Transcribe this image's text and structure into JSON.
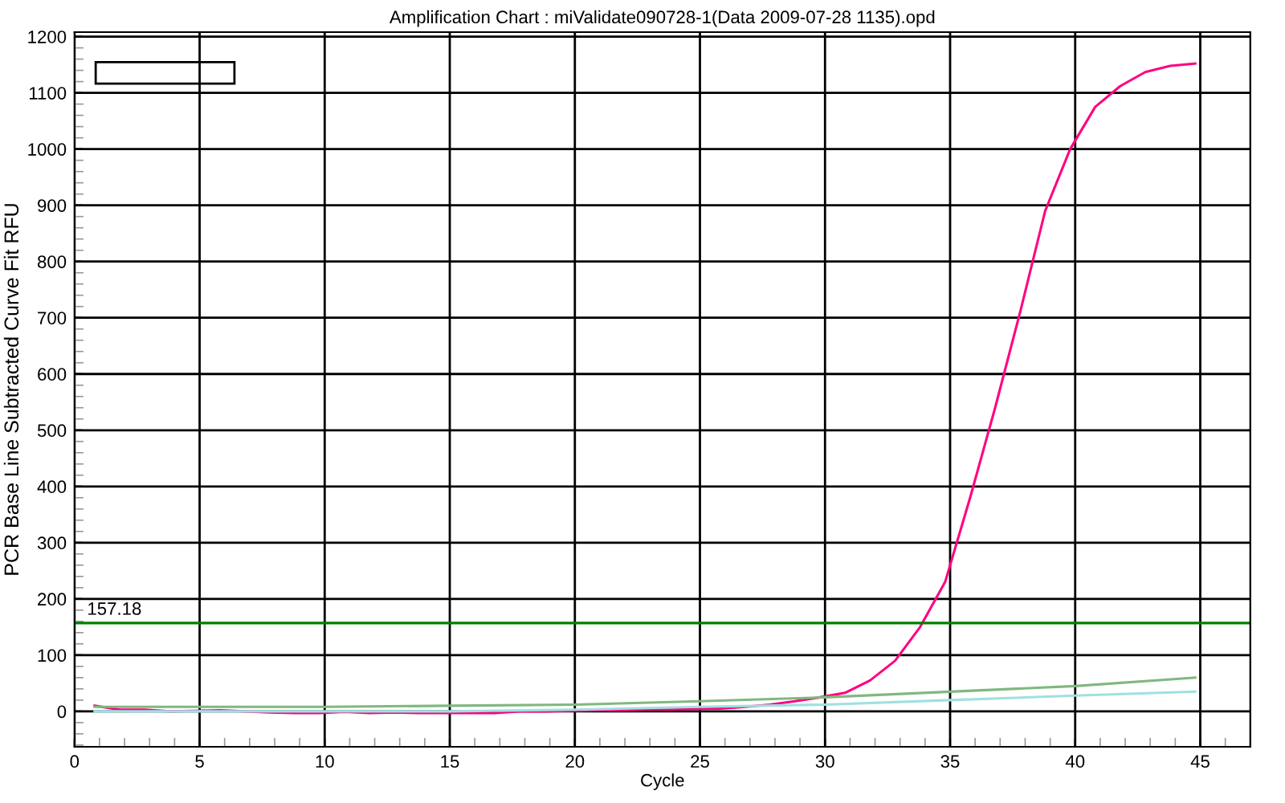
{
  "chart_data": {
    "type": "line",
    "title": "Amplification Chart : miValidate090728-1(Data 2009-07-28 1135).opd",
    "xlabel": "Cycle",
    "ylabel": "PCR Base Line Subtracted Curve Fit RFU",
    "xlim": [
      0,
      47
    ],
    "ylim": [
      -63,
      1208
    ],
    "xticks": [
      0,
      5,
      10,
      15,
      20,
      25,
      30,
      35,
      40,
      45
    ],
    "yticks": [
      0,
      100,
      200,
      300,
      400,
      500,
      600,
      700,
      800,
      900,
      1000,
      1100,
      1200
    ],
    "grid": true,
    "legend": false,
    "marker": "none",
    "line_style": "solid",
    "ref_lines": [
      {
        "axis": "y",
        "value": 157.18,
        "label": "157.18",
        "color": "#008000"
      }
    ],
    "series": [
      {
        "color": "#ff0080",
        "x": [
          0.8,
          1.8,
          2.8,
          3.8,
          4.8,
          5.8,
          6.8,
          7.8,
          8.8,
          9.8,
          10.8,
          11.8,
          12.8,
          13.8,
          14.8,
          15.8,
          16.8,
          17.8,
          18.8,
          19.8,
          20.8,
          21.8,
          22.8,
          23.8,
          24.8,
          25.8,
          26.8,
          27.8,
          28.8,
          29.8,
          30.8,
          31.8,
          32.8,
          33.8,
          34.8,
          35.8,
          36.8,
          37.8,
          38.8,
          39.8,
          40.8,
          41.8,
          42.8,
          43.8,
          44.8
        ],
        "values": [
          10,
          3,
          3,
          0,
          1,
          2,
          0,
          -2,
          -3,
          -3,
          -1,
          -3,
          -2,
          -3,
          -3,
          -3,
          -3,
          0,
          0,
          1,
          2,
          2,
          3,
          3,
          4,
          5,
          8,
          12,
          18,
          25,
          33,
          55,
          90,
          150,
          230,
          380,
          540,
          710,
          890,
          1000,
          1075,
          1112,
          1137,
          1148,
          1152
        ]
      },
      {
        "color": "#80b880",
        "x": [
          0.8,
          5,
          10,
          15,
          20,
          25,
          30,
          35,
          40,
          44.8
        ],
        "values": [
          8,
          8,
          8,
          10,
          12,
          18,
          25,
          35,
          45,
          60
        ]
      },
      {
        "color": "#a0e0e0",
        "x": [
          0.8,
          5,
          10,
          15,
          20,
          25,
          30,
          35,
          40,
          44.8
        ],
        "values": [
          0,
          0,
          0,
          0,
          3,
          8,
          12,
          20,
          28,
          35
        ]
      }
    ]
  }
}
